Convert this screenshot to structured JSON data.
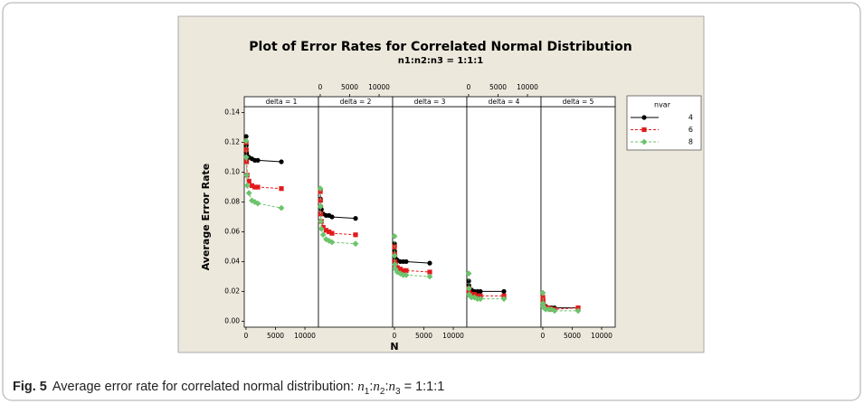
{
  "chart_data": {
    "type": "line",
    "title": "Plot of Error Rates for Correlated Normal Distribution",
    "subtitle": "n1:n2:n3 = 1:1:1",
    "x_label": "N",
    "y_label": "Average Error Rate",
    "legend_title": "nvar",
    "legend": "right",
    "x": [
      20,
      50,
      100,
      200,
      500,
      1000,
      1500,
      2000,
      6000
    ],
    "xlim": [
      -300,
      12300
    ],
    "xticks": [
      0,
      5000,
      10000
    ],
    "bottom_axis_panels": [
      0,
      2,
      4
    ],
    "top_axis_panels": [
      1,
      3
    ],
    "ylim": [
      -0.004,
      0.144
    ],
    "yticks": [
      {
        "value": 0,
        "label": "0.00"
      },
      {
        "value": 0.02,
        "label": "0.02"
      },
      {
        "value": 0.04,
        "label": "0.04"
      },
      {
        "value": 0.06,
        "label": "0.06"
      },
      {
        "value": 0.08,
        "label": "0.08"
      },
      {
        "value": 0.1,
        "label": "0.10"
      },
      {
        "value": 0.12,
        "label": "0.12"
      },
      {
        "value": 0.14,
        "label": "0.14"
      }
    ],
    "series": [
      {
        "name": "4",
        "color": "#000000",
        "marker": "circle",
        "dashed": false
      },
      {
        "name": "6",
        "color": "#e31a1c",
        "marker": "square",
        "dashed": true
      },
      {
        "name": "8",
        "color": "#6cc36c",
        "marker": "diamond",
        "dashed": true
      }
    ],
    "panels": [
      {
        "label": "delta = 1",
        "values": [
          [
            0.124,
            0.118,
            0.113,
            0.111,
            0.11,
            0.109,
            0.108,
            0.108,
            0.107
          ],
          [
            0.12,
            0.115,
            0.107,
            0.098,
            0.094,
            0.091,
            0.09,
            0.09,
            0.089
          ],
          [
            0.121,
            0.11,
            0.098,
            0.091,
            0.086,
            0.081,
            0.08,
            0.079,
            0.076
          ]
        ]
      },
      {
        "label": "delta = 2",
        "values": [
          [
            0.088,
            0.082,
            0.077,
            0.075,
            0.072,
            0.071,
            0.071,
            0.07,
            0.069
          ],
          [
            0.087,
            0.081,
            0.072,
            0.067,
            0.063,
            0.061,
            0.06,
            0.059,
            0.058
          ],
          [
            0.089,
            0.077,
            0.067,
            0.062,
            0.058,
            0.055,
            0.054,
            0.053,
            0.052
          ]
        ]
      },
      {
        "label": "delta = 3",
        "values": [
          [
            0.052,
            0.047,
            0.044,
            0.042,
            0.041,
            0.04,
            0.04,
            0.04,
            0.039
          ],
          [
            0.05,
            0.045,
            0.04,
            0.038,
            0.036,
            0.035,
            0.034,
            0.034,
            0.033
          ],
          [
            0.057,
            0.044,
            0.038,
            0.035,
            0.033,
            0.032,
            0.031,
            0.031,
            0.03
          ]
        ]
      },
      {
        "label": "delta = 4",
        "values": [
          [
            0.027,
            0.024,
            0.022,
            0.021,
            0.021,
            0.02,
            0.02,
            0.02,
            0.02
          ],
          [
            0.022,
            0.02,
            0.019,
            0.018,
            0.018,
            0.018,
            0.017,
            0.017,
            0.017
          ],
          [
            0.032,
            0.022,
            0.018,
            0.017,
            0.016,
            0.016,
            0.015,
            0.015,
            0.015
          ]
        ]
      },
      {
        "label": "delta = 5",
        "values": [
          [
            0.015,
            0.013,
            0.011,
            0.01,
            0.01,
            0.009,
            0.009,
            0.009,
            0.009
          ],
          [
            0.016,
            0.013,
            0.011,
            0.01,
            0.009,
            0.009,
            0.008,
            0.008,
            0.009
          ],
          [
            0.019,
            0.012,
            0.01,
            0.009,
            0.008,
            0.008,
            0.008,
            0.007,
            0.007
          ]
        ]
      }
    ]
  },
  "caption": {
    "label": "Fig. 5",
    "text": "Average error rate for correlated normal distribution:",
    "math_terms": [
      {
        "var": "n",
        "sub": "1"
      },
      {
        "var": "n",
        "sub": "2"
      },
      {
        "var": "n",
        "sub": "3"
      }
    ],
    "math_sep": ":",
    "math_rhs": "= 1:1:1"
  }
}
